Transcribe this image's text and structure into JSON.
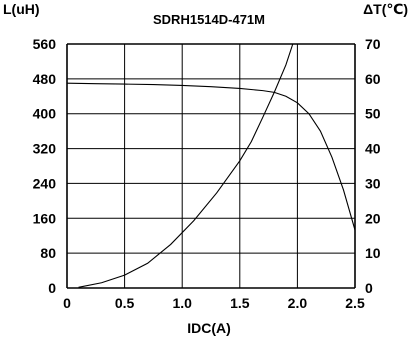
{
  "chart_data": {
    "type": "line",
    "title": "SDRH1514D-471M",
    "xlabel": "IDC(A)",
    "ylabel_left": "L(uH)",
    "ylabel_right": "ΔT(℃)",
    "xlim": [
      0,
      2.5
    ],
    "ylim_left": [
      0,
      560
    ],
    "ylim_right": [
      0,
      70
    ],
    "x_ticks": [
      0,
      0.5,
      1.0,
      1.5,
      2.0,
      2.5
    ],
    "x_tick_labels": [
      "0",
      "0.5",
      "1.0",
      "1.5",
      "2.0",
      "2.5"
    ],
    "y_left_ticks": [
      0,
      80,
      160,
      240,
      320,
      400,
      480,
      560
    ],
    "y_left_tick_labels": [
      "0",
      "80",
      "160",
      "240",
      "320",
      "400",
      "480",
      "560"
    ],
    "y_right_ticks": [
      0,
      10,
      20,
      30,
      40,
      50,
      60,
      70
    ],
    "y_right_tick_labels": [
      "0",
      "10",
      "20",
      "30",
      "40",
      "50",
      "60",
      "70"
    ],
    "grid": true,
    "series": [
      {
        "axis": "left",
        "color": "#000000",
        "points": [
          [
            0,
            470
          ],
          [
            0.25,
            469
          ],
          [
            0.5,
            468
          ],
          [
            0.75,
            467
          ],
          [
            1.0,
            465
          ],
          [
            1.25,
            462
          ],
          [
            1.5,
            458
          ],
          [
            1.7,
            453
          ],
          [
            1.8,
            449
          ],
          [
            1.9,
            440
          ],
          [
            2.0,
            425
          ],
          [
            2.1,
            400
          ],
          [
            2.2,
            360
          ],
          [
            2.3,
            300
          ],
          [
            2.4,
            225
          ],
          [
            2.5,
            133
          ]
        ]
      },
      {
        "axis": "right",
        "color": "#000000",
        "points": [
          [
            0.1,
            0.2
          ],
          [
            0.3,
            1.5
          ],
          [
            0.5,
            3.7
          ],
          [
            0.7,
            7.1
          ],
          [
            0.9,
            12.5
          ],
          [
            1.1,
            19.3
          ],
          [
            1.3,
            27.3
          ],
          [
            1.5,
            36.5
          ],
          [
            1.6,
            42
          ],
          [
            1.7,
            49
          ],
          [
            1.8,
            56.2
          ],
          [
            1.9,
            64
          ],
          [
            1.96,
            70
          ]
        ]
      }
    ]
  }
}
